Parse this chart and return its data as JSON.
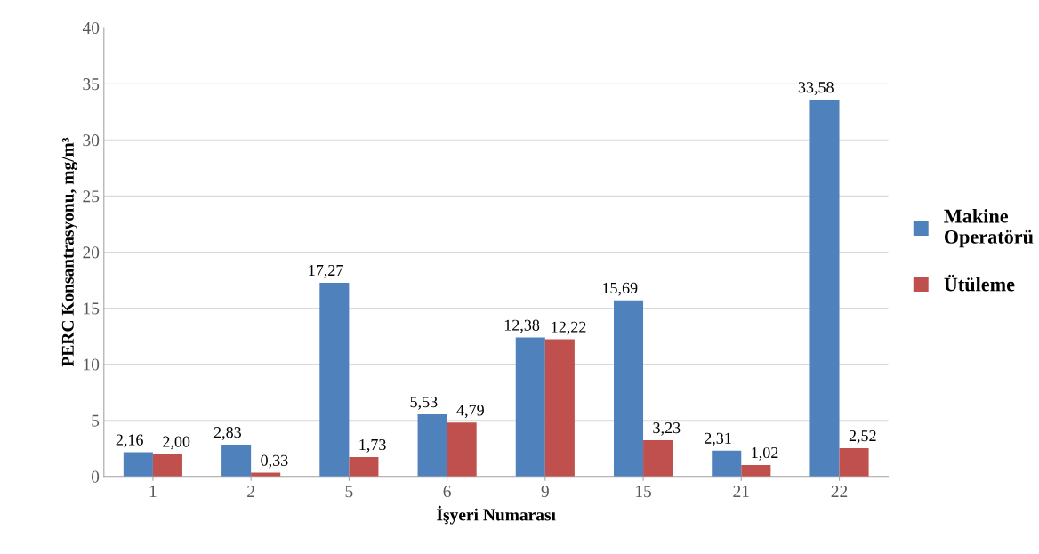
{
  "chart_data": {
    "type": "bar",
    "xlabel": "İşyeri Numarası",
    "ylabel": "PERC Konsantrasyonu, mg/m³",
    "categories": [
      "1",
      "2",
      "5",
      "6",
      "9",
      "15",
      "21",
      "22"
    ],
    "series": [
      {
        "name": "Makine Operatörü",
        "color": "#4f81bd",
        "values": [
          2.16,
          2.83,
          17.27,
          5.53,
          12.38,
          15.69,
          2.31,
          33.58
        ],
        "value_labels": [
          "2,16",
          "2,83",
          "17,27",
          "5,53",
          "12,38",
          "15,69",
          "2,31",
          "33,58"
        ]
      },
      {
        "name": "Ütüleme",
        "color": "#c0504d",
        "values": [
          2.0,
          0.33,
          1.73,
          4.79,
          12.22,
          3.23,
          1.02,
          2.52
        ],
        "value_labels": [
          "2,00",
          "0,33",
          "1,73",
          "4,79",
          "12,22",
          "3,23",
          "1,02",
          "2,52"
        ]
      }
    ],
    "ylim": [
      0,
      40
    ],
    "yticks": [
      0,
      5,
      10,
      15,
      20,
      25,
      30,
      35,
      40
    ],
    "grid": "y",
    "legend": "right"
  }
}
